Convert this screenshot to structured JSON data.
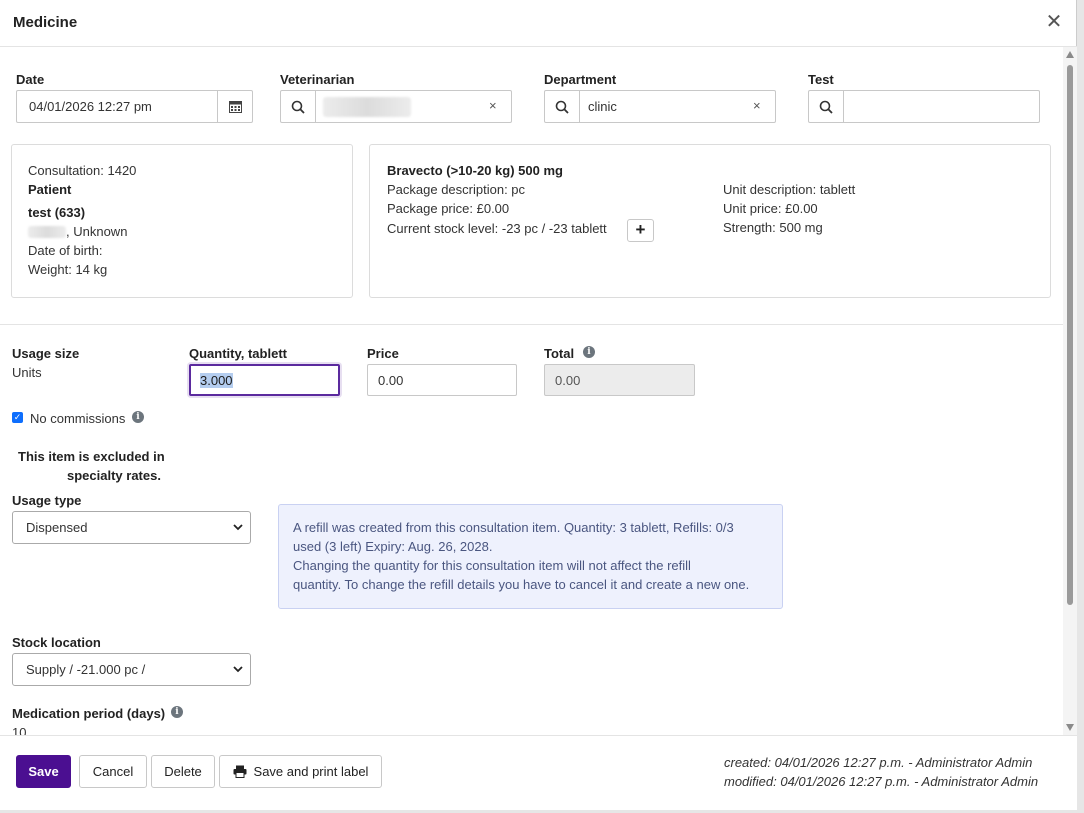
{
  "modal": {
    "title": "Medicine"
  },
  "form": {
    "date": {
      "label": "Date",
      "value": "04/01/2026 12:27 pm"
    },
    "veterinarian": {
      "label": "Veterinarian",
      "value": "",
      "clear": "×"
    },
    "department": {
      "label": "Department",
      "value": "clinic",
      "clear": "×"
    },
    "test": {
      "label": "Test",
      "value": ""
    }
  },
  "patient_card": {
    "consultation": "Consultation: 1420",
    "patient_heading": "Patient",
    "patient_name": "test (633)",
    "species": ", Unknown",
    "dob": "Date of birth:",
    "weight": "Weight: 14 kg"
  },
  "product_card": {
    "name": "Bravecto (>10-20 kg) 500 mg",
    "package_description": "Package description: pc",
    "package_price": "Package price: £0.00",
    "stock_level": "Current stock level: -23 pc / -23 tablett",
    "unit_description": "Unit description: tablett",
    "unit_price": "Unit price: £0.00",
    "strength": "Strength: 500 mg",
    "add_stock_label": "+"
  },
  "usage": {
    "usage_size_label": "Usage size",
    "usage_size_value": "Units",
    "quantity_label": "Quantity, tablett",
    "quantity_value": "3.000",
    "price_label": "Price",
    "price_value": "0.00",
    "total_label": "Total",
    "total_value": "0.00",
    "no_commissions_label": "No commissions",
    "no_commissions_checked": true,
    "excluded_line1": "This item is excluded in",
    "excluded_line2": "specialty rates.",
    "usage_type_label": "Usage type",
    "usage_type_value": "Dispensed",
    "stock_location_label": "Stock location",
    "stock_location_value": "Supply / -21.000 pc /",
    "medication_period_label": "Medication period (days)",
    "medication_period_value": "10"
  },
  "refill_alert": {
    "line1": "A refill was created from this consultation item. Quantity: 3 tablett, Refills: 0/3",
    "line2": "used (3 left) Expiry: Aug. 26, 2028.",
    "line3": "Changing the quantity for this consultation item will not affect the refill",
    "line4": "quantity. To change the refill details you have to cancel it and create a new one."
  },
  "footer": {
    "save_label": "Save",
    "cancel_label": "Cancel",
    "delete_label": "Delete",
    "save_print_label": "Save and print label",
    "created": "created: 04/01/2026 12:27 p.m. - Administrator Admin",
    "modified": "modified: 04/01/2026 12:27 p.m. - Administrator Admin"
  },
  "colors": {
    "primary": "#4b0f91",
    "alert_bg": "#eef1fd",
    "checkbox": "#0d6efd"
  }
}
